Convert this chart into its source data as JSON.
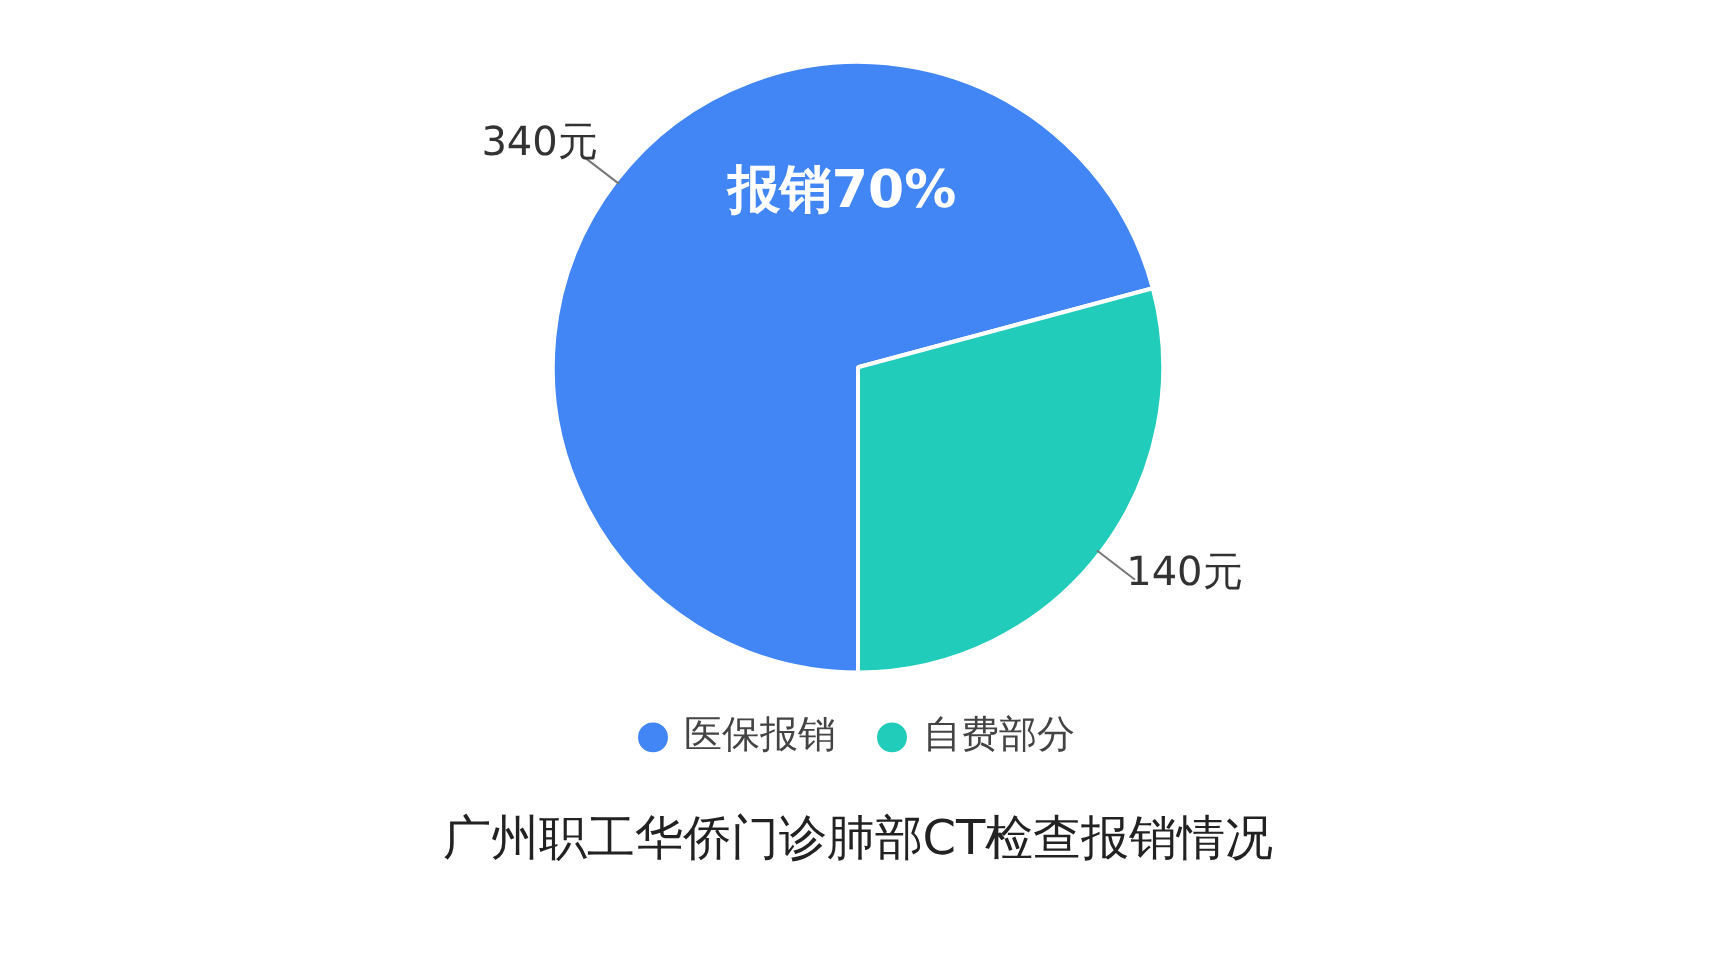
{
  "chart_data": {
    "type": "pie",
    "title": "广州职工华侨门诊肺部CT检查报销情况",
    "categories": [
      "医保报销",
      "自费部分"
    ],
    "values": [
      340,
      140
    ],
    "value_labels": [
      "340元",
      "140元"
    ],
    "colors": [
      "#4285f4",
      "#22ccbb"
    ],
    "annotations": [
      "报销70%"
    ],
    "legend": "bottom"
  }
}
